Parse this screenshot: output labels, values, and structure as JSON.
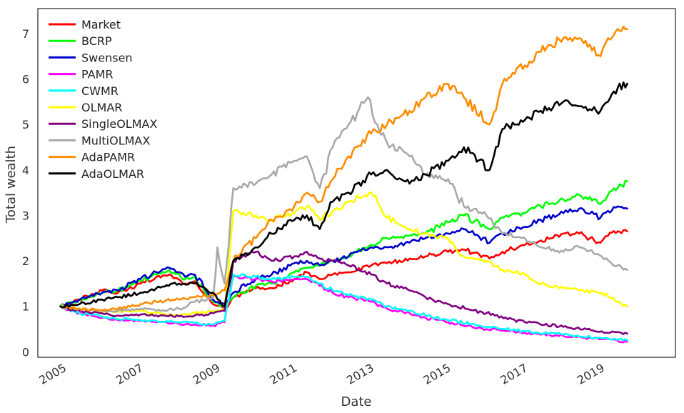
{
  "chart_data": {
    "type": "line",
    "xlabel": "Date",
    "ylabel": "Total wealth",
    "xlim": [
      "2004-05-01",
      "2020-12-01"
    ],
    "ylim": [
      -0.12,
      7.55
    ],
    "xticks": [
      {
        "label": "2005",
        "date": "2005-01-01"
      },
      {
        "label": "2007",
        "date": "2007-01-01"
      },
      {
        "label": "2009",
        "date": "2009-01-01"
      },
      {
        "label": "2011",
        "date": "2011-01-01"
      },
      {
        "label": "2013",
        "date": "2013-01-01"
      },
      {
        "label": "2015",
        "date": "2015-01-01"
      },
      {
        "label": "2017",
        "date": "2017-01-01"
      },
      {
        "label": "2019",
        "date": "2019-01-01"
      }
    ],
    "yticks": [
      0,
      1,
      2,
      3,
      4,
      5,
      6,
      7
    ],
    "grid": false,
    "legend_position": "top-left",
    "series": [
      {
        "name": "Market",
        "color": "#ff0000",
        "x": [
          "2004-12-01",
          "2005-06-01",
          "2006-01-01",
          "2006-06-01",
          "2007-01-01",
          "2007-06-01",
          "2007-10-01",
          "2008-03-01",
          "2008-06-01",
          "2008-11-20",
          "2009-03-10",
          "2009-06-01",
          "2010-01-01",
          "2010-06-01",
          "2011-01-01",
          "2011-05-01",
          "2011-09-01",
          "2012-01-01",
          "2012-06-01",
          "2013-01-01",
          "2013-06-01",
          "2014-01-01",
          "2014-06-01",
          "2015-01-01",
          "2015-06-01",
          "2016-02-01",
          "2016-06-01",
          "2017-01-01",
          "2017-06-01",
          "2018-01-01",
          "2018-06-01",
          "2018-12-20",
          "2019-03-01",
          "2019-06-01",
          "2019-09-01"
        ],
        "y": [
          1.0,
          1.15,
          1.35,
          1.3,
          1.5,
          1.65,
          1.7,
          1.5,
          1.55,
          1.05,
          0.95,
          1.2,
          1.4,
          1.4,
          1.6,
          1.75,
          1.6,
          1.7,
          1.75,
          1.9,
          1.95,
          2.05,
          2.1,
          2.2,
          2.25,
          2.05,
          2.2,
          2.35,
          2.45,
          2.6,
          2.6,
          2.4,
          2.55,
          2.65,
          2.65
        ]
      },
      {
        "name": "BCRP",
        "color": "#00ff00",
        "x": [
          "2004-12-01",
          "2005-06-01",
          "2006-01-01",
          "2006-06-01",
          "2007-01-01",
          "2007-06-01",
          "2007-10-01",
          "2008-03-01",
          "2008-06-01",
          "2008-11-20",
          "2009-03-10",
          "2009-06-01",
          "2010-01-01",
          "2010-06-01",
          "2011-01-01",
          "2011-05-01",
          "2011-09-01",
          "2012-01-01",
          "2012-06-01",
          "2013-01-01",
          "2013-06-01",
          "2014-01-01",
          "2014-06-01",
          "2015-01-01",
          "2015-06-01",
          "2016-02-01",
          "2016-06-01",
          "2017-01-01",
          "2017-06-01",
          "2018-01-01",
          "2018-06-01",
          "2018-12-20",
          "2019-03-01",
          "2019-06-01",
          "2019-09-01"
        ],
        "y": [
          1.0,
          1.15,
          1.3,
          1.35,
          1.55,
          1.7,
          1.8,
          1.6,
          1.65,
          1.1,
          1.0,
          1.2,
          1.45,
          1.5,
          1.75,
          1.85,
          1.9,
          2.0,
          2.1,
          2.35,
          2.5,
          2.55,
          2.6,
          2.85,
          3.0,
          2.7,
          2.95,
          3.05,
          3.2,
          3.35,
          3.45,
          3.25,
          3.45,
          3.6,
          3.75
        ]
      },
      {
        "name": "Swensen",
        "color": "#0000cd",
        "x": [
          "2004-12-01",
          "2005-06-01",
          "2006-01-01",
          "2006-06-01",
          "2007-01-01",
          "2007-06-01",
          "2007-10-01",
          "2008-03-01",
          "2008-06-01",
          "2008-11-20",
          "2009-03-10",
          "2009-06-01",
          "2010-01-01",
          "2010-06-01",
          "2011-01-01",
          "2011-05-01",
          "2011-09-01",
          "2012-01-01",
          "2012-06-01",
          "2013-01-01",
          "2013-06-01",
          "2014-01-01",
          "2014-06-01",
          "2015-01-01",
          "2015-06-01",
          "2016-02-01",
          "2016-06-01",
          "2017-01-01",
          "2017-06-01",
          "2018-01-01",
          "2018-06-01",
          "2018-12-20",
          "2019-03-01",
          "2019-06-01",
          "2019-09-01"
        ],
        "y": [
          1.0,
          1.15,
          1.3,
          1.35,
          1.6,
          1.75,
          1.85,
          1.65,
          1.7,
          1.15,
          1.05,
          1.3,
          1.6,
          1.7,
          1.95,
          2.0,
          1.9,
          2.0,
          2.1,
          2.3,
          2.3,
          2.4,
          2.5,
          2.6,
          2.7,
          2.4,
          2.6,
          2.75,
          2.9,
          3.05,
          3.15,
          2.95,
          3.1,
          3.2,
          3.15
        ]
      },
      {
        "name": "PAMR",
        "color": "#ff00ff",
        "x": [
          "2004-12-01",
          "2005-06-01",
          "2006-01-01",
          "2006-06-01",
          "2007-01-01",
          "2007-06-01",
          "2008-01-01",
          "2008-06-01",
          "2008-11-20",
          "2009-03-10",
          "2009-06-01",
          "2010-01-01",
          "2010-06-01",
          "2011-01-01",
          "2011-05-01",
          "2011-09-01",
          "2012-01-01",
          "2012-06-01",
          "2013-01-01",
          "2013-06-01",
          "2014-01-01",
          "2014-06-01",
          "2015-01-01",
          "2016-01-01",
          "2017-01-01",
          "2018-01-01",
          "2019-01-01",
          "2019-09-01"
        ],
        "y": [
          1.0,
          0.85,
          0.75,
          0.7,
          0.68,
          0.65,
          0.62,
          0.6,
          0.58,
          0.65,
          1.65,
          1.6,
          1.55,
          1.6,
          1.6,
          1.45,
          1.3,
          1.2,
          1.1,
          0.95,
          0.85,
          0.75,
          0.65,
          0.5,
          0.42,
          0.35,
          0.28,
          0.22
        ]
      },
      {
        "name": "CWMR",
        "color": "#00ffff",
        "x": [
          "2004-12-01",
          "2005-06-01",
          "2006-01-01",
          "2006-06-01",
          "2007-01-01",
          "2007-06-01",
          "2008-01-01",
          "2008-06-01",
          "2008-11-20",
          "2009-03-10",
          "2009-06-01",
          "2010-01-01",
          "2010-06-01",
          "2011-01-01",
          "2011-05-01",
          "2011-09-01",
          "2012-01-01",
          "2012-06-01",
          "2013-01-01",
          "2013-06-01",
          "2014-01-01",
          "2014-06-01",
          "2015-01-01",
          "2016-01-01",
          "2017-01-01",
          "2018-01-01",
          "2019-01-01",
          "2019-09-01"
        ],
        "y": [
          1.0,
          0.85,
          0.78,
          0.72,
          0.7,
          0.68,
          0.65,
          0.63,
          0.6,
          0.68,
          1.7,
          1.65,
          1.6,
          1.65,
          1.65,
          1.5,
          1.35,
          1.25,
          1.15,
          1.0,
          0.9,
          0.8,
          0.7,
          0.55,
          0.45,
          0.38,
          0.3,
          0.25
        ]
      },
      {
        "name": "OLMAR",
        "color": "#ffff00",
        "x": [
          "2004-12-01",
          "2005-06-01",
          "2006-01-01",
          "2006-06-01",
          "2007-01-01",
          "2007-06-01",
          "2008-01-01",
          "2008-06-01",
          "2008-11-20",
          "2009-03-10",
          "2009-06-01",
          "2010-01-01",
          "2010-06-01",
          "2011-01-01",
          "2011-05-01",
          "2011-09-01",
          "2012-01-01",
          "2012-06-01",
          "2013-01-01",
          "2013-06-01",
          "2014-01-01",
          "2014-06-01",
          "2015-01-01",
          "2015-06-01",
          "2016-01-01",
          "2016-06-01",
          "2017-01-01",
          "2017-06-01",
          "2018-01-01",
          "2018-06-01",
          "2019-01-01",
          "2019-06-01",
          "2019-09-01"
        ],
        "y": [
          1.0,
          0.95,
          0.9,
          0.88,
          0.9,
          0.85,
          0.8,
          0.85,
          0.9,
          0.95,
          3.1,
          3.0,
          2.9,
          3.05,
          3.2,
          2.9,
          3.1,
          3.3,
          3.5,
          2.95,
          2.7,
          2.6,
          2.5,
          2.1,
          2.0,
          1.8,
          1.7,
          1.5,
          1.4,
          1.35,
          1.3,
          1.1,
          1.0
        ]
      },
      {
        "name": "SingleOLMAX",
        "color": "#800080",
        "x": [
          "2004-12-01",
          "2005-06-01",
          "2006-01-01",
          "2006-06-01",
          "2007-01-01",
          "2007-06-01",
          "2008-01-01",
          "2008-06-01",
          "2008-11-20",
          "2009-03-10",
          "2009-06-01",
          "2010-01-01",
          "2010-06-01",
          "2011-01-01",
          "2011-05-01",
          "2011-09-01",
          "2012-01-01",
          "2012-06-01",
          "2013-01-01",
          "2013-06-01",
          "2014-01-01",
          "2014-06-01",
          "2015-01-01",
          "2016-01-01",
          "2017-01-01",
          "2018-01-01",
          "2019-01-01",
          "2019-09-01"
        ],
        "y": [
          1.0,
          0.9,
          0.85,
          0.8,
          0.82,
          0.8,
          0.78,
          0.8,
          0.85,
          0.9,
          2.0,
          2.2,
          2.0,
          2.1,
          2.2,
          2.05,
          2.0,
          1.9,
          1.7,
          1.5,
          1.35,
          1.2,
          1.05,
          0.85,
          0.65,
          0.55,
          0.45,
          0.4
        ]
      },
      {
        "name": "MultiOLMAX",
        "color": "#a9a9a9",
        "x": [
          "2004-12-01",
          "2005-06-01",
          "2006-01-01",
          "2006-06-01",
          "2007-01-01",
          "2007-06-01",
          "2008-01-01",
          "2008-06-01",
          "2008-11-20",
          "2009-01-01",
          "2009-03-10",
          "2009-06-01",
          "2010-01-01",
          "2010-06-01",
          "2011-01-01",
          "2011-05-01",
          "2011-09-01",
          "2012-01-01",
          "2012-06-01",
          "2012-12-01",
          "2013-03-01",
          "2013-06-01",
          "2014-01-01",
          "2014-06-01",
          "2015-01-01",
          "2015-06-01",
          "2016-01-01",
          "2016-06-01",
          "2017-01-01",
          "2017-06-01",
          "2018-01-01",
          "2018-06-01",
          "2019-01-01",
          "2019-06-01",
          "2019-09-01"
        ],
        "y": [
          1.0,
          0.95,
          0.9,
          0.9,
          0.95,
          0.9,
          0.95,
          1.1,
          1.2,
          2.3,
          1.5,
          3.6,
          3.7,
          3.9,
          4.2,
          4.3,
          3.6,
          4.5,
          5.0,
          5.6,
          5.0,
          4.6,
          4.3,
          3.9,
          3.8,
          3.2,
          3.0,
          2.6,
          2.5,
          2.3,
          2.2,
          2.3,
          2.1,
          1.9,
          1.8
        ]
      },
      {
        "name": "AdaPAMR",
        "color": "#ff8c00",
        "x": [
          "2004-12-01",
          "2005-06-01",
          "2006-01-01",
          "2006-06-01",
          "2007-01-01",
          "2007-06-01",
          "2008-01-01",
          "2008-06-01",
          "2008-11-20",
          "2009-03-10",
          "2009-06-01",
          "2010-01-01",
          "2010-06-01",
          "2011-01-01",
          "2011-05-01",
          "2011-09-01",
          "2012-01-01",
          "2012-06-01",
          "2013-01-01",
          "2013-06-01",
          "2014-01-01",
          "2014-06-01",
          "2015-01-01",
          "2015-06-01",
          "2016-02-01",
          "2016-06-01",
          "2017-01-01",
          "2017-06-01",
          "2018-01-01",
          "2018-06-01",
          "2018-12-20",
          "2019-03-01",
          "2019-06-01",
          "2019-09-01"
        ],
        "y": [
          1.0,
          0.95,
          0.9,
          0.95,
          1.05,
          1.1,
          1.15,
          1.2,
          1.25,
          1.35,
          2.0,
          2.5,
          2.9,
          3.2,
          3.5,
          3.3,
          3.8,
          4.3,
          4.8,
          5.0,
          5.3,
          5.6,
          5.9,
          5.6,
          5.0,
          5.9,
          6.3,
          6.6,
          6.9,
          6.9,
          6.5,
          6.9,
          7.1,
          7.1
        ]
      },
      {
        "name": "AdaOLMAR",
        "color": "#000000",
        "x": [
          "2004-12-01",
          "2005-06-01",
          "2006-01-01",
          "2006-06-01",
          "2007-01-01",
          "2007-06-01",
          "2008-01-01",
          "2008-06-01",
          "2008-11-20",
          "2009-03-10",
          "2009-06-01",
          "2010-01-01",
          "2010-06-01",
          "2011-01-01",
          "2011-05-01",
          "2011-09-01",
          "2012-01-01",
          "2012-06-01",
          "2013-01-01",
          "2013-06-01",
          "2014-01-01",
          "2014-06-01",
          "2015-01-01",
          "2015-06-01",
          "2016-02-01",
          "2016-06-01",
          "2017-01-01",
          "2017-06-01",
          "2018-01-01",
          "2018-06-01",
          "2018-12-20",
          "2019-03-01",
          "2019-06-01",
          "2019-09-01"
        ],
        "y": [
          1.0,
          1.05,
          1.15,
          1.2,
          1.3,
          1.4,
          1.5,
          1.5,
          1.3,
          1.0,
          2.0,
          2.3,
          2.6,
          2.9,
          3.0,
          2.7,
          3.3,
          3.5,
          3.9,
          4.0,
          3.7,
          3.9,
          4.2,
          4.5,
          4.0,
          4.9,
          5.1,
          5.3,
          5.5,
          5.4,
          5.3,
          5.5,
          5.8,
          5.9
        ]
      }
    ]
  }
}
